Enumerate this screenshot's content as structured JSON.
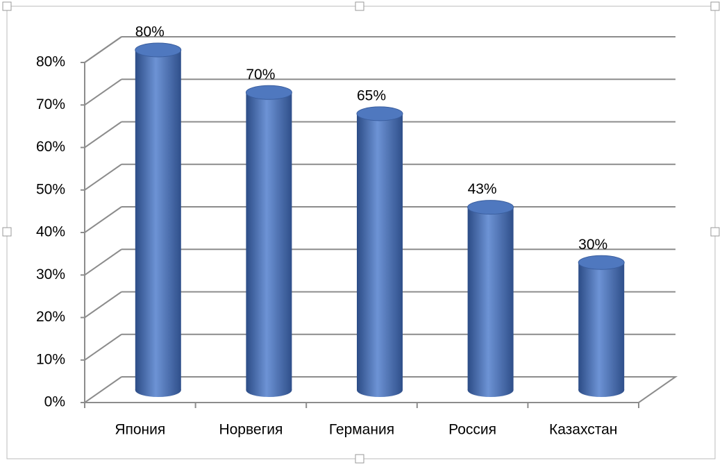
{
  "chart_data": {
    "type": "bar",
    "categories": [
      "Япония",
      "Норвегия",
      "Германия",
      "Россия",
      "Казахстан"
    ],
    "values": [
      80,
      70,
      65,
      43,
      30
    ],
    "value_labels": [
      "80%",
      "70%",
      "65%",
      "43%",
      "30%"
    ],
    "color": "#4f78bf",
    "ylim": [
      0,
      80
    ],
    "yticks": [
      {
        "value": 0,
        "label": "0%"
      },
      {
        "value": 10,
        "label": "10%"
      },
      {
        "value": 20,
        "label": "20%"
      },
      {
        "value": 30,
        "label": "30%"
      },
      {
        "value": 40,
        "label": "40%"
      },
      {
        "value": 50,
        "label": "50%"
      },
      {
        "value": 60,
        "label": "60%"
      },
      {
        "value": 70,
        "label": "70%"
      },
      {
        "value": 80,
        "label": "80%"
      }
    ],
    "grid": true
  }
}
